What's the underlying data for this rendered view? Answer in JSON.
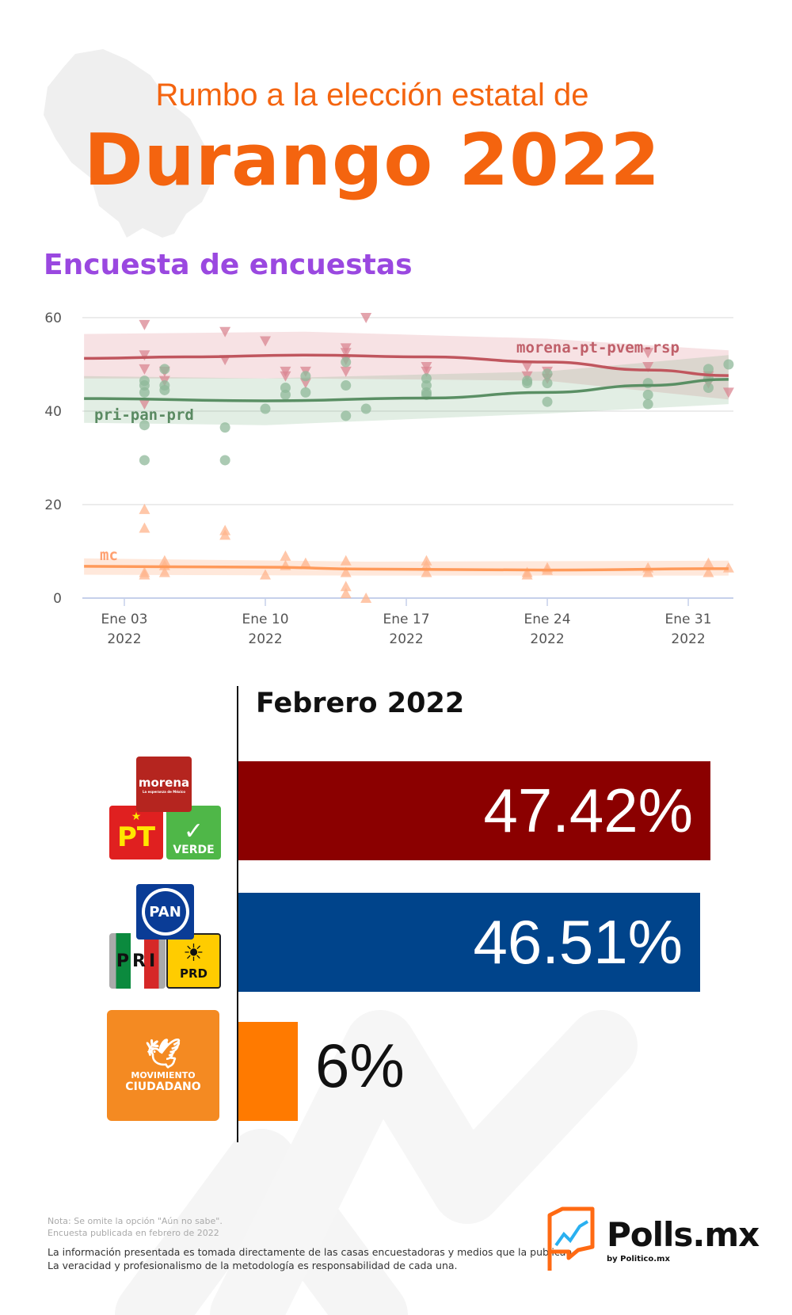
{
  "header": {
    "line1": "Rumbo a la elección estatal de",
    "line2": "Durango 2022"
  },
  "subtitle": "Encuesta de encuestas",
  "chart_data": {
    "type": "scatter",
    "title": "",
    "xlabel": "",
    "ylabel": "",
    "ylim": [
      0,
      60
    ],
    "yticks": [
      "0",
      "20",
      "40",
      "60"
    ],
    "xticks": [
      {
        "date": "2022-01-03",
        "label": "Ene 03",
        "year": "2022"
      },
      {
        "date": "2022-01-10",
        "label": "Ene 10",
        "year": "2022"
      },
      {
        "date": "2022-01-17",
        "label": "Ene 17",
        "year": "2022"
      },
      {
        "date": "2022-01-24",
        "label": "Ene 24",
        "year": "2022"
      },
      {
        "date": "2022-01-31",
        "label": "Ene 31",
        "year": "2022"
      }
    ],
    "xlim": [
      "2022-01-01",
      "2022-02-02"
    ],
    "grid": true,
    "series": [
      {
        "name": "morena-pt-pvem-rsp",
        "color": "#c0565e",
        "marker": "triangle-down",
        "points": [
          [
            "2022-01-04",
            58.5
          ],
          [
            "2022-01-04",
            52
          ],
          [
            "2022-01-04",
            49
          ],
          [
            "2022-01-04",
            41.5
          ],
          [
            "2022-01-05",
            48.5
          ],
          [
            "2022-01-05",
            46.5
          ],
          [
            "2022-01-08",
            57
          ],
          [
            "2022-01-08",
            51
          ],
          [
            "2022-01-10",
            55
          ],
          [
            "2022-01-11",
            48.5
          ],
          [
            "2022-01-11",
            47.5
          ],
          [
            "2022-01-12",
            48.5
          ],
          [
            "2022-01-12",
            46
          ],
          [
            "2022-01-14",
            53.5
          ],
          [
            "2022-01-14",
            52.5
          ],
          [
            "2022-01-14",
            51
          ],
          [
            "2022-01-14",
            48.5
          ],
          [
            "2022-01-15",
            60
          ],
          [
            "2022-01-18",
            49.5
          ],
          [
            "2022-01-18",
            48.5
          ],
          [
            "2022-01-23",
            49.5
          ],
          [
            "2022-01-23",
            47.5
          ],
          [
            "2022-01-24",
            48.5
          ],
          [
            "2022-01-24",
            47
          ],
          [
            "2022-01-29",
            52.5
          ],
          [
            "2022-01-29",
            49.5
          ],
          [
            "2022-02-01",
            47.5
          ],
          [
            "2022-02-01",
            46
          ],
          [
            "2022-02-02",
            44
          ]
        ],
        "trend": [
          [
            "2022-01-01",
            51.3
          ],
          [
            "2022-01-06",
            51.6
          ],
          [
            "2022-01-12",
            52
          ],
          [
            "2022-01-18",
            51.6
          ],
          [
            "2022-01-24",
            50.5
          ],
          [
            "2022-01-29",
            48.8
          ],
          [
            "2022-02-02",
            47.6
          ]
        ],
        "band": [
          [
            "2022-01-01",
            47,
            56.5
          ],
          [
            "2022-01-12",
            47,
            57
          ],
          [
            "2022-01-24",
            46.5,
            55.5
          ],
          [
            "2022-02-02",
            42.5,
            53
          ]
        ]
      },
      {
        "name": "pri-pan-prd",
        "color": "#5a8f64",
        "marker": "circle",
        "points": [
          [
            "2022-01-04",
            46.5
          ],
          [
            "2022-01-04",
            45.5
          ],
          [
            "2022-01-04",
            44
          ],
          [
            "2022-01-04",
            37
          ],
          [
            "2022-01-04",
            29.5
          ],
          [
            "2022-01-05",
            49
          ],
          [
            "2022-01-05",
            45.5
          ],
          [
            "2022-01-05",
            44.5
          ],
          [
            "2022-01-08",
            36.5
          ],
          [
            "2022-01-08",
            29.5
          ],
          [
            "2022-01-10",
            40.5
          ],
          [
            "2022-01-11",
            45
          ],
          [
            "2022-01-11",
            43.5
          ],
          [
            "2022-01-12",
            47.5
          ],
          [
            "2022-01-12",
            44
          ],
          [
            "2022-01-14",
            50.5
          ],
          [
            "2022-01-14",
            45.5
          ],
          [
            "2022-01-14",
            39
          ],
          [
            "2022-01-15",
            40.5
          ],
          [
            "2022-01-18",
            47
          ],
          [
            "2022-01-18",
            45.5
          ],
          [
            "2022-01-18",
            44
          ],
          [
            "2022-01-18",
            43.5
          ],
          [
            "2022-01-23",
            46.5
          ],
          [
            "2022-01-23",
            46
          ],
          [
            "2022-01-24",
            48
          ],
          [
            "2022-01-24",
            46
          ],
          [
            "2022-01-24",
            42
          ],
          [
            "2022-01-29",
            46
          ],
          [
            "2022-01-29",
            43.5
          ],
          [
            "2022-01-29",
            41.5
          ],
          [
            "2022-02-01",
            49
          ],
          [
            "2022-02-01",
            47
          ],
          [
            "2022-02-01",
            45
          ],
          [
            "2022-02-02",
            50
          ]
        ],
        "trend": [
          [
            "2022-01-01",
            42.7
          ],
          [
            "2022-01-10",
            42.2
          ],
          [
            "2022-01-18",
            42.8
          ],
          [
            "2022-01-24",
            44
          ],
          [
            "2022-01-29",
            45.5
          ],
          [
            "2022-02-02",
            46.8
          ]
        ],
        "band": [
          [
            "2022-01-01",
            37.5,
            47.5
          ],
          [
            "2022-01-10",
            37,
            47
          ],
          [
            "2022-01-24",
            39.5,
            48.5
          ],
          [
            "2022-02-02",
            41.5,
            52
          ]
        ]
      },
      {
        "name": "mc",
        "color": "#ff9a5a",
        "marker": "triangle-up",
        "points": [
          [
            "2022-01-04",
            19
          ],
          [
            "2022-01-04",
            15
          ],
          [
            "2022-01-04",
            5.5
          ],
          [
            "2022-01-04",
            5
          ],
          [
            "2022-01-05",
            8
          ],
          [
            "2022-01-05",
            7
          ],
          [
            "2022-01-05",
            5.5
          ],
          [
            "2022-01-08",
            14.5
          ],
          [
            "2022-01-08",
            13.5
          ],
          [
            "2022-01-10",
            5
          ],
          [
            "2022-01-11",
            9
          ],
          [
            "2022-01-11",
            7
          ],
          [
            "2022-01-12",
            7.5
          ],
          [
            "2022-01-14",
            8
          ],
          [
            "2022-01-14",
            5.5
          ],
          [
            "2022-01-14",
            2.5
          ],
          [
            "2022-01-14",
            1
          ],
          [
            "2022-01-15",
            0
          ],
          [
            "2022-01-18",
            8
          ],
          [
            "2022-01-18",
            7
          ],
          [
            "2022-01-18",
            5.5
          ],
          [
            "2022-01-23",
            5.5
          ],
          [
            "2022-01-23",
            5
          ],
          [
            "2022-01-24",
            6.5
          ],
          [
            "2022-01-24",
            6
          ],
          [
            "2022-01-29",
            6.5
          ],
          [
            "2022-01-29",
            5.5
          ],
          [
            "2022-02-01",
            7.5
          ],
          [
            "2022-02-01",
            5.5
          ],
          [
            "2022-02-02",
            6.5
          ]
        ],
        "trend": [
          [
            "2022-01-01",
            6.8
          ],
          [
            "2022-01-10",
            6.6
          ],
          [
            "2022-01-15",
            6.2
          ],
          [
            "2022-01-24",
            6
          ],
          [
            "2022-02-02",
            6.3
          ]
        ],
        "band": [
          [
            "2022-01-01",
            5,
            8.5
          ],
          [
            "2022-01-15",
            4.8,
            7.8
          ],
          [
            "2022-02-02",
            4.8,
            8
          ]
        ]
      }
    ]
  },
  "results": {
    "title": "Febrero 2022",
    "rows": [
      {
        "coalition": "morena-pt-pvem",
        "value": "47.42%",
        "color": "#8b0000"
      },
      {
        "coalition": "pan-pri-prd",
        "value": "46.51%",
        "color": "#00448b"
      },
      {
        "coalition": "mc",
        "value": "6%",
        "color": "#ff7a00"
      }
    ]
  },
  "logos": {
    "morena": "morena",
    "morena_sub": "La esperanza de México",
    "pt": "PT",
    "verde": "VERDE",
    "pan": "PAN",
    "pri": "PRI",
    "prd": "PRD",
    "mc1": "MOVIMIENTO",
    "mc2": "CIUDADANO"
  },
  "footer": {
    "note1": "Nota: Se omite la opción \"Aún no sabe\".",
    "note2": "Encuesta publicada en febrero de 2022",
    "info1": "La información presentada es tomada directamente de las casas encuestadoras y medios que la publican.",
    "info2": "La veracidad y profesionalismo de la metodología es responsabilidad de cada una.",
    "brand": "Polls.mx",
    "brand_sub": "by Politico.mx"
  }
}
